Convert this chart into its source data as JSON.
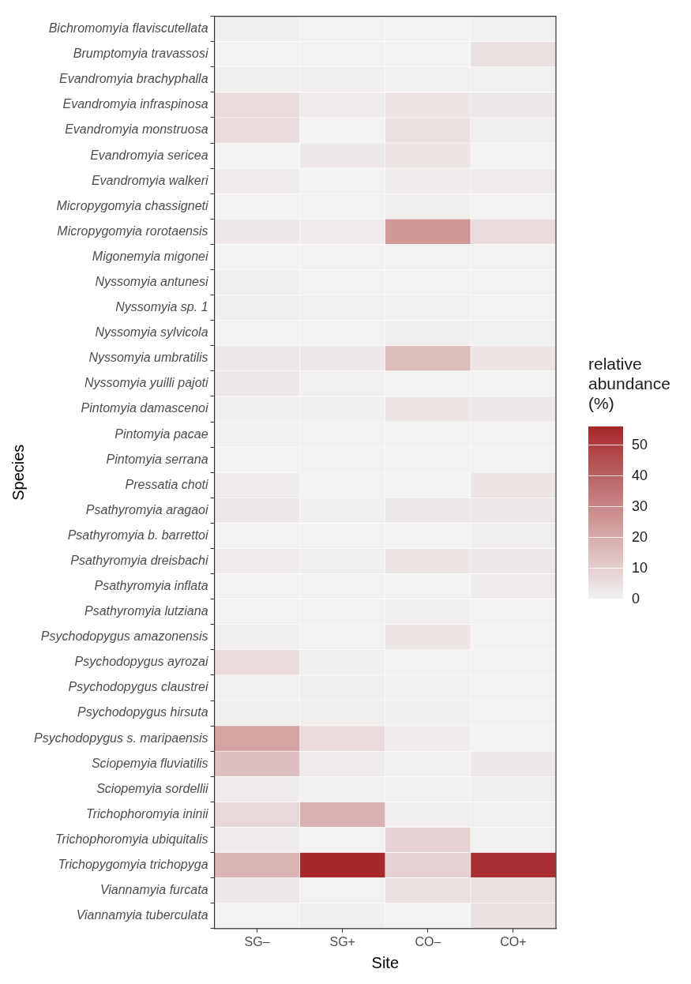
{
  "chart_data": {
    "type": "heatmap",
    "xlabel": "Site",
    "ylabel": "Species",
    "legend_title": "relative abundance (%)",
    "categories": [
      "SG–",
      "SG+",
      "CO–",
      "CO+"
    ],
    "y_categories": [
      "Bichromomyia flaviscutellata",
      "Brumptomyia travassosi",
      "Evandromyia brachyphalla",
      "Evandromyia infraspinosa",
      "Evandromyia monstruosa",
      "Evandromyia sericea",
      "Evandromyia walkeri",
      "Micropygomyia chassigneti",
      "Micropygomyia rorotaensis",
      "Migonemyia migonei",
      "Nyssomyia antunesi",
      "Nyssomyia sp. 1",
      "Nyssomyia sylvicola",
      "Nyssomyia umbratilis",
      "Nyssomyia yuilli pajoti",
      "Pintomyia damascenoi",
      "Pintomyia pacae",
      "Pintomyia serrana",
      "Pressatia choti",
      "Psathyromyia aragaoi",
      "Psathyromyia b. barrettoi",
      "Psathyromyia dreisbachi",
      "Psathyromyia inflata",
      "Psathyromyia lutziana",
      "Psychodopygus amazonensis",
      "Psychodopygus ayrozai",
      "Psychodopygus claustrei",
      "Psychodopygus hirsuta",
      "Psychodopygus s. maripaensis",
      "Sciopemyia fluviatilis",
      "Sciopemyia sordellii",
      "Trichophoromyia ininii",
      "Trichophoromyia ubiquitalis",
      "Trichopygomyia trichopyga",
      "Viannamyia furcata",
      "Viannamyia tuberculata"
    ],
    "cells": [
      [
        1,
        0,
        0,
        0.5
      ],
      [
        0,
        0,
        0,
        5
      ],
      [
        1,
        1,
        0.5,
        0.5
      ],
      [
        6,
        2,
        4,
        3
      ],
      [
        6,
        0,
        5,
        1
      ],
      [
        0,
        3,
        4,
        0
      ],
      [
        2,
        0,
        2,
        2
      ],
      [
        0,
        0,
        1,
        0
      ],
      [
        3,
        2,
        25,
        6
      ],
      [
        0,
        0,
        0,
        0
      ],
      [
        1,
        0,
        0,
        0
      ],
      [
        1,
        0.5,
        0.5,
        0
      ],
      [
        0,
        0,
        1,
        0.5
      ],
      [
        3,
        3,
        15,
        4
      ],
      [
        3,
        0.5,
        0,
        0
      ],
      [
        1,
        1,
        4,
        3
      ],
      [
        0.5,
        0,
        0,
        0
      ],
      [
        0,
        0,
        0,
        0
      ],
      [
        2,
        0,
        0,
        4
      ],
      [
        3,
        1,
        3,
        3
      ],
      [
        0,
        0,
        0,
        1.5
      ],
      [
        2,
        1,
        4,
        3
      ],
      [
        0,
        0,
        0,
        2
      ],
      [
        0,
        0,
        1,
        0
      ],
      [
        1,
        0,
        4,
        0
      ],
      [
        6,
        1,
        0,
        0
      ],
      [
        0.5,
        1.5,
        0.5,
        0
      ],
      [
        1.5,
        1.5,
        1,
        0
      ],
      [
        22,
        6,
        2,
        0
      ],
      [
        14,
        2,
        0.5,
        3
      ],
      [
        2,
        0.5,
        0.5,
        1.5
      ],
      [
        7,
        18,
        1,
        0.5
      ],
      [
        2,
        0,
        9,
        0.5
      ],
      [
        17,
        56,
        9,
        54
      ],
      [
        3,
        0,
        5,
        5
      ],
      [
        0,
        1,
        0,
        5
      ]
    ],
    "clim": [
      0,
      56
    ],
    "cticks": [
      0,
      10,
      20,
      30,
      40,
      50
    ]
  }
}
